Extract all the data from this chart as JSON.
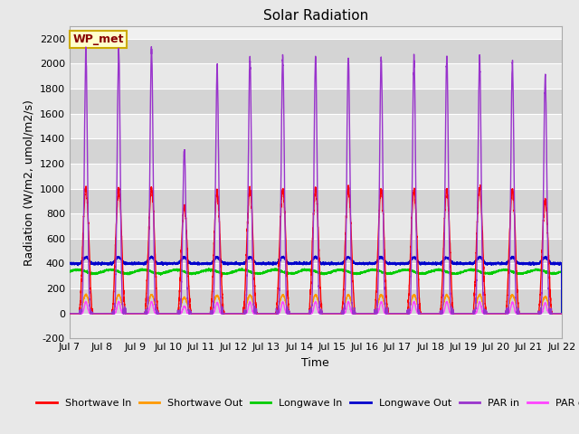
{
  "title": "Solar Radiation",
  "ylabel": "Radiation (W/m2, umol/m2/s)",
  "xlabel": "Time",
  "xlim_days": [
    7,
    22
  ],
  "ylim": [
    -200,
    2300
  ],
  "yticks": [
    -200,
    0,
    200,
    400,
    600,
    800,
    1000,
    1200,
    1400,
    1600,
    1800,
    2000,
    2200
  ],
  "xtick_labels": [
    "Jul 7",
    "Jul 8",
    "Jul 9",
    "Jul 10",
    "Jul 11",
    "Jul 12",
    "Jul 13",
    "Jul 14",
    "Jul 15",
    "Jul 16",
    "Jul 17",
    "Jul 18",
    "Jul 19",
    "Jul 20",
    "Jul 21",
    "Jul 22"
  ],
  "figure_bg": "#e8e8e8",
  "plot_bg_light": "#f0f0f0",
  "plot_bg_dark": "#d8d8d8",
  "grid_color": "#ffffff",
  "annotation_text": "WP_met",
  "annotation_bg": "#ffffcc",
  "annotation_border": "#ccaa00",
  "legend_labels": [
    "Shortwave In",
    "Shortwave Out",
    "Longwave In",
    "Longwave Out",
    "PAR in",
    "PAR out"
  ],
  "line_colors": [
    "#ff0000",
    "#ff9900",
    "#00cc00",
    "#0000cc",
    "#9933cc",
    "#ff44ff"
  ],
  "n_days": 15
}
